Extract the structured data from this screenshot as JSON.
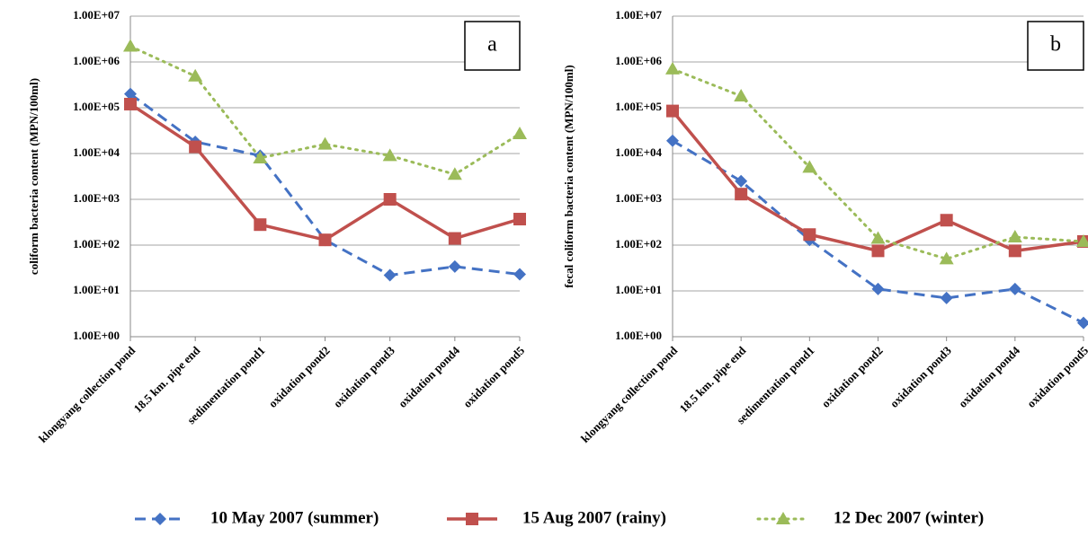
{
  "chart_data": [
    {
      "type": "line",
      "annotation": "a",
      "y_label": "coliform bacteria content (MPN/100ml)",
      "log_scale": true,
      "grid": true,
      "categories": [
        "klongyang collection pond",
        "18.5 km. pipe end",
        "sedimentation pond1",
        "oxidation pond2",
        "oxidation pond3",
        "oxidation pond4",
        "oxidation pond5"
      ],
      "ylim": [
        1,
        10000000
      ],
      "yticks": [
        {
          "value": 1,
          "label": "1.00E+00"
        },
        {
          "value": 10,
          "label": "1.00E+01"
        },
        {
          "value": 100,
          "label": "1.00E+02"
        },
        {
          "value": 1000,
          "label": "1.00E+03"
        },
        {
          "value": 10000,
          "label": "1.00E+04"
        },
        {
          "value": 100000,
          "label": "1.00E+05"
        },
        {
          "value": 1000000,
          "label": "1.00E+06"
        },
        {
          "value": 10000000,
          "label": "1.00E+07"
        }
      ],
      "series": [
        {
          "name": "10 May 2007 (summer)",
          "color": "#4472c4",
          "values": [
            200000,
            18000,
            9000,
            130,
            22,
            34,
            23
          ]
        },
        {
          "name": "15 Aug 2007 (rainy)",
          "color": "#c0504d",
          "values": [
            120000,
            14000,
            280,
            130,
            1000,
            140,
            370
          ]
        },
        {
          "name": "12 Dec 2007 (winter)",
          "color": "#9bbb59",
          "values": [
            2200000,
            490000,
            8000,
            16000,
            9000,
            3500,
            27000
          ]
        }
      ]
    },
    {
      "type": "line",
      "annotation": "b",
      "y_label": "fecal coliform  bacteria content (MPN/100ml)",
      "log_scale": true,
      "grid": true,
      "categories": [
        "klongyang collection pond",
        "18.5 km. pipe end",
        "sedimentation pond1",
        "oxidation pond2",
        "oxidation pond3",
        "oxidation pond4",
        "oxidation pond5"
      ],
      "ylim": [
        1,
        10000000
      ],
      "yticks": [
        {
          "value": 1,
          "label": "1.00E+00"
        },
        {
          "value": 10,
          "label": "1.00E+01"
        },
        {
          "value": 100,
          "label": "1.00E+02"
        },
        {
          "value": 1000,
          "label": "1.00E+03"
        },
        {
          "value": 10000,
          "label": "1.00E+04"
        },
        {
          "value": 100000,
          "label": "1.00E+05"
        },
        {
          "value": 1000000,
          "label": "1.00E+06"
        },
        {
          "value": 10000000,
          "label": "1.00E+07"
        }
      ],
      "series": [
        {
          "color": "#4472c4",
          "values": [
            19000,
            2500,
            130,
            11,
            7,
            11,
            2
          ]
        },
        {
          "color": "#c0504d",
          "values": [
            85000,
            1300,
            170,
            75,
            350,
            75,
            120
          ]
        },
        {
          "color": "#9bbb59",
          "values": [
            700000,
            180000,
            5000,
            140,
            50,
            150,
            120
          ]
        }
      ]
    }
  ]
}
